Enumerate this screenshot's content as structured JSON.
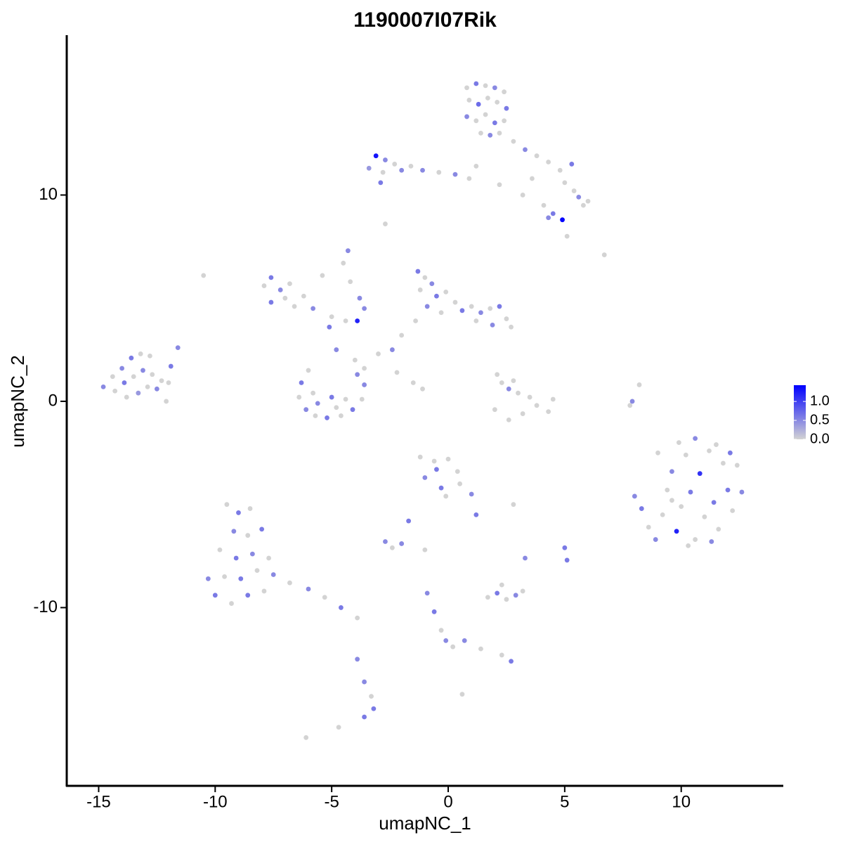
{
  "chart_data": {
    "type": "scatter",
    "title": "1190007I07Rik",
    "x_label": "umapNC_1",
    "y_label": "umapNC_2",
    "xlim": [
      -16.37,
      14.38
    ],
    "ylim": [
      -18.64,
      17.75
    ],
    "xticks": [
      -15,
      -10,
      -5,
      0,
      5,
      10
    ],
    "yticks": [
      -10,
      0,
      10
    ],
    "color_scale": {
      "low": "#d3d3d3",
      "high": "#0000ff",
      "limits": [
        0,
        1.43
      ],
      "ticks": [
        {
          "value": 0,
          "label": "0.0"
        },
        {
          "value": 0.5,
          "label": "0.5"
        },
        {
          "value": 1,
          "label": "1.0"
        }
      ]
    },
    "x": [
      0.8,
      1.2,
      1.6,
      2.0,
      2.4,
      0.9,
      1.3,
      1.7,
      2.1,
      2.5,
      0.8,
      1.2,
      1.6,
      2.0,
      2.4,
      1.4,
      1.8,
      2.2,
      2.8,
      3.3,
      3.8,
      4.3,
      4.8,
      5.3,
      5.0,
      5.4,
      5.6,
      6.0,
      5.8,
      4.1,
      4.5,
      4.9,
      3.6,
      2.2,
      3.2,
      4.3,
      -3.4,
      -3.1,
      -2.7,
      -2.3,
      -2.8,
      -2.0,
      -1.6,
      -1.1,
      -2.9,
      -0.4,
      0.3,
      0.9,
      1.2,
      -2.7,
      -14.8,
      -14.4,
      -14.0,
      -13.6,
      -13.2,
      -12.8,
      -14.3,
      -13.9,
      -13.5,
      -13.1,
      -12.7,
      -12.3,
      -13.8,
      -13.3,
      -12.9,
      -12.5,
      -12.1,
      -11.9,
      -11.6,
      -12.0,
      -7.6,
      -7.9,
      -7.2,
      -7.0,
      -7.6,
      -6.6,
      -6.2,
      -5.8,
      -5.0,
      -5.1,
      -4.4,
      -3.6,
      -3.9,
      -6.8,
      -5.4,
      -4.3,
      -4.5,
      -4.2,
      -3.8,
      -4.8,
      -6.3,
      -6.4,
      -6.1,
      -5.7,
      -5.2,
      -4.6,
      -4.1,
      -3.7,
      -3.6,
      -3.6,
      -4.0,
      -5.6,
      -5.0,
      -4.4,
      -4.8,
      -5.8,
      -3.9,
      -6.0,
      -1.3,
      -1.0,
      -0.7,
      -1.2,
      -0.5,
      -0.1,
      0.3,
      -0.9,
      -0.3,
      0.6,
      1.0,
      1.4,
      1.8,
      2.2,
      2.5,
      2.7,
      1.9,
      1.2,
      -1.4,
      -2.0,
      -2.4,
      -3.0,
      -2.2,
      -1.5,
      -1.1,
      2.1,
      2.3,
      2.6,
      2.8,
      3.5,
      3.8,
      3.2,
      2.6,
      2.0,
      4.3,
      4.5,
      3.0,
      8.2,
      7.9,
      7.8,
      -10.5,
      6.7,
      5.1,
      8.0,
      8.3,
      8.6,
      8.9,
      9.2,
      9.4,
      9.6,
      9.8,
      10.0,
      10.2,
      10.4,
      10.6,
      10.8,
      11.0,
      11.2,
      11.4,
      11.6,
      11.8,
      12.0,
      12.2,
      12.4,
      12.6,
      9.0,
      9.9,
      10.6,
      11.5,
      12.1,
      10.3,
      11.3,
      9.6,
      -9.5,
      -9.0,
      -8.5,
      -9.2,
      -8.6,
      -8.0,
      -9.8,
      -9.1,
      -8.4,
      -7.7,
      -10.3,
      -9.6,
      -8.9,
      -8.2,
      -7.5,
      -10.0,
      -9.3,
      -8.6,
      -7.9,
      -6.8,
      -6.0,
      -5.3,
      -4.6,
      -3.9,
      -1.2,
      -0.6,
      0,
      -1.0,
      -0.5,
      0.4,
      -0.3,
      0.5,
      -0.1,
      1.0,
      1.2,
      2.8,
      -2.7,
      -2.4,
      -2.0,
      -1.7,
      -1.0,
      3.3,
      5.0,
      5.1,
      1.7,
      2.1,
      2.5,
      2.9,
      2.3,
      3.2,
      2.7,
      2.3,
      -0.9,
      -0.6,
      -0.3,
      -0.1,
      0.2,
      0.7,
      1.4,
      0.6,
      -3.6,
      -3.3,
      -3.2,
      -3.6,
      -3.9,
      -6.1,
      -4.7
    ],
    "y": [
      15.2,
      15.4,
      15.3,
      15.2,
      15.0,
      14.6,
      14.4,
      14.7,
      14.5,
      14.2,
      13.8,
      13.6,
      13.9,
      13.5,
      13.6,
      13.0,
      12.9,
      13.0,
      12.6,
      12.2,
      11.9,
      11.6,
      11.2,
      11.5,
      10.6,
      10.2,
      9.9,
      9.7,
      9.5,
      9.5,
      9.1,
      8.8,
      10.8,
      10.5,
      10.0,
      8.9,
      11.3,
      11.9,
      11.7,
      11.5,
      11.1,
      11.2,
      11.4,
      11.2,
      10.6,
      11.1,
      11.0,
      10.8,
      11.4,
      8.6,
      0.7,
      1.2,
      1.6,
      2.1,
      2.3,
      2.2,
      0.5,
      0.9,
      1.2,
      1.5,
      1.3,
      1.0,
      0.2,
      0.4,
      0.7,
      0.6,
      0.0,
      1.7,
      2.6,
      0.9,
      6.0,
      5.6,
      5.4,
      5.0,
      4.8,
      4.6,
      5.1,
      4.5,
      4.1,
      3.6,
      3.9,
      4.5,
      3.9,
      5.7,
      6.1,
      7.3,
      6.7,
      5.8,
      5.0,
      2.5,
      0.9,
      0.2,
      -0.4,
      -0.7,
      -0.8,
      -0.7,
      -0.4,
      0.1,
      0.8,
      1.6,
      2.0,
      -0.1,
      0.2,
      0.1,
      -0.3,
      0.4,
      1.3,
      1.5,
      6.3,
      6.0,
      5.7,
      5.4,
      5.1,
      5.3,
      4.8,
      4.6,
      4.3,
      4.4,
      4.6,
      4.3,
      4.5,
      4.6,
      4.0,
      3.6,
      3.7,
      3.9,
      3.9,
      3.2,
      2.5,
      2.3,
      1.4,
      0.9,
      0.6,
      1.3,
      0.9,
      0.6,
      1.0,
      0.2,
      -0.2,
      -0.6,
      -0.9,
      -0.4,
      -0.5,
      0.1,
      0.4,
      0.8,
      0.0,
      -0.2,
      6.1,
      7.1,
      8.0,
      -4.6,
      -5.2,
      -6.1,
      -6.7,
      -5.5,
      -4.3,
      -3.4,
      -6.3,
      -5.1,
      -2.6,
      -4.4,
      -6.7,
      -3.5,
      -5.6,
      -2.4,
      -4.9,
      -6.2,
      -3.0,
      -4.3,
      -5.3,
      -3.1,
      -4.4,
      -2.5,
      -2.0,
      -1.8,
      -2.1,
      -2.5,
      -7.0,
      -6.8,
      -4.8,
      -5.0,
      -5.4,
      -5.2,
      -6.3,
      -6.5,
      -6.2,
      -7.2,
      -7.6,
      -7.4,
      -7.6,
      -8.6,
      -8.5,
      -8.6,
      -8.2,
      -8.4,
      -9.4,
      -9.8,
      -9.4,
      -9.2,
      -8.8,
      -9.1,
      -9.5,
      -10.0,
      -10.5,
      -2.7,
      -2.9,
      -2.8,
      -3.7,
      -3.3,
      -3.4,
      -4.2,
      -4.0,
      -4.6,
      -4.5,
      -5.5,
      -5.0,
      -6.8,
      -7.1,
      -6.9,
      -5.8,
      -7.2,
      -7.6,
      -7.1,
      -7.7,
      -9.5,
      -9.3,
      -9.6,
      -9.4,
      -8.9,
      -9.2,
      -12.6,
      -12.3,
      -9.3,
      -10.2,
      -11.1,
      -11.6,
      -11.9,
      -11.6,
      -12.0,
      -14.2,
      -13.6,
      -14.3,
      -14.9,
      -15.3,
      -12.5,
      -16.3,
      -15.8
    ],
    "values": [
      0,
      0.6,
      0,
      0.5,
      0,
      0,
      0.7,
      0,
      0,
      0.6,
      0.5,
      0,
      0,
      0.6,
      0,
      0,
      0.5,
      0,
      0,
      0.5,
      0,
      0,
      0,
      0.6,
      0,
      0,
      0.5,
      0,
      0,
      0,
      0.6,
      1.4,
      0,
      0,
      0,
      0.5,
      0.4,
      1.3,
      0.5,
      0,
      0,
      0.5,
      0,
      0.5,
      0.6,
      0,
      0.5,
      0,
      0,
      0,
      0.5,
      0,
      0.5,
      0.6,
      0,
      0,
      0,
      0.6,
      0,
      0.5,
      0,
      0,
      0,
      0.4,
      0,
      0.5,
      0,
      0.6,
      0.5,
      0,
      0.6,
      0,
      0.5,
      0,
      0.6,
      0,
      0,
      0.5,
      0,
      0.6,
      0,
      0.5,
      1.2,
      0,
      0,
      0.5,
      0,
      0,
      0.5,
      0.5,
      0.6,
      0,
      0.5,
      0,
      0.6,
      0,
      0.6,
      0,
      0.5,
      0,
      0,
      0.5,
      0.6,
      0,
      0,
      0,
      0.5,
      0,
      0.6,
      0,
      0.5,
      0,
      0.6,
      0,
      0,
      0.5,
      0,
      0.6,
      0,
      0.5,
      0,
      0.6,
      0,
      0,
      0.5,
      0,
      0,
      0,
      0.5,
      0,
      0,
      0,
      0,
      0,
      0,
      0.5,
      0,
      0,
      0,
      0,
      0,
      0,
      0,
      0,
      0,
      0,
      0.5,
      0,
      0,
      0,
      0,
      0.5,
      0.6,
      0,
      0.5,
      0,
      0,
      0.5,
      1.2,
      0,
      0,
      0.6,
      0,
      1.1,
      0,
      0,
      0.6,
      0,
      0,
      0.6,
      0,
      0,
      0.5,
      0,
      0,
      0.5,
      0,
      0.6,
      0,
      0.5,
      0,
      0,
      0.6,
      0,
      0.5,
      0,
      0.6,
      0,
      0.6,
      0.5,
      0,
      0.5,
      0,
      0.6,
      0,
      0.5,
      0.6,
      0,
      0.6,
      0,
      0,
      0.5,
      0,
      0.6,
      0,
      0,
      0,
      0,
      0.5,
      0.6,
      0,
      0.6,
      0,
      0,
      0.5,
      0.6,
      0,
      0.5,
      0,
      0.5,
      0.6,
      0,
      0.5,
      0.6,
      0.6,
      0,
      0.6,
      0,
      0.5,
      0,
      0,
      0.6,
      0,
      0.5,
      0.6,
      0,
      0.5,
      0,
      0.5,
      0,
      0,
      0.5,
      0,
      0.6,
      0.6,
      0.5,
      0,
      0
    ]
  }
}
